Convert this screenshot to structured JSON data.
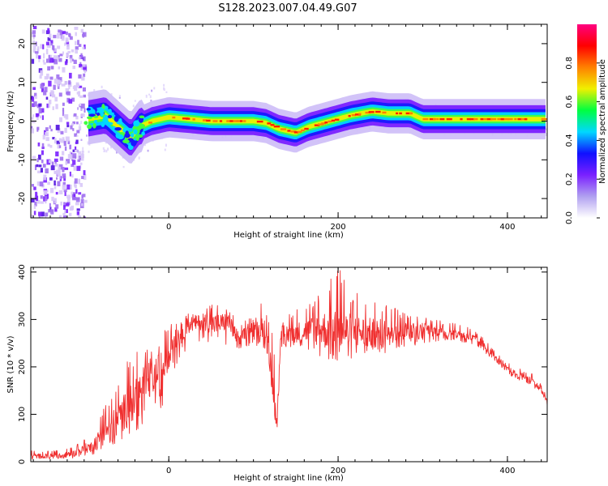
{
  "title": "S128.2023.007.04.49.G07",
  "chart_data": [
    {
      "type": "heatmap",
      "xlabel": "Height of straight line (km)",
      "ylabel": "Frequency (Hz)",
      "xlim": [
        -163,
        447
      ],
      "ylim": [
        -25,
        25
      ],
      "xticks": [
        0,
        200,
        400
      ],
      "yticks": [
        -20,
        -10,
        0,
        10,
        20
      ],
      "colorbar": {
        "label": "Normalized spectral amplitude",
        "range": [
          0,
          1
        ],
        "ticks": [
          "0.0",
          "0.2",
          "0.4",
          "0.6",
          "0.8"
        ],
        "colors": [
          "#ffffff",
          "#b0a0f0",
          "#7a20ff",
          "#1010ff",
          "#00d8ff",
          "#00ff40",
          "#f0f000",
          "#ff8000",
          "#ff0000",
          "#ff0080"
        ]
      },
      "ridge": {
        "x": [
          -100,
          -75,
          -55,
          -45,
          -35,
          -20,
          0,
          50,
          100,
          115,
          130,
          150,
          165,
          190,
          215,
          240,
          260,
          285,
          300,
          350,
          400,
          447
        ],
        "y": [
          0.5,
          1.5,
          -2.5,
          -4.5,
          -1.5,
          0,
          1,
          0,
          0,
          -0.5,
          -2,
          -3,
          -1.5,
          0,
          1.5,
          2.5,
          2,
          2,
          0.5,
          0.5,
          0.5,
          0.5
        ]
      },
      "noise_region_x": [
        -163,
        -100
      ]
    },
    {
      "type": "line",
      "xlabel": "Height of straight line (km)",
      "ylabel": "SNR (10 * v/v)",
      "xlim": [
        -163,
        447
      ],
      "ylim": [
        0,
        410
      ],
      "xticks": [
        0,
        200,
        400
      ],
      "yticks": [
        0,
        100,
        200,
        300,
        400
      ],
      "color": "#f03030",
      "series": [
        {
          "x": [
            -163,
            -130,
            -110,
            -90,
            -70,
            -50,
            -35,
            -20,
            -5,
            5,
            15,
            25,
            40,
            55,
            70,
            85,
            95,
            105,
            112,
            118,
            122,
            125,
            128,
            132,
            140,
            160,
            180,
            200,
            220,
            240,
            260,
            280,
            300,
            320,
            340,
            360,
            370,
            380,
            390,
            400,
            410,
            420,
            430,
            440,
            447
          ],
          "y": [
            12,
            12,
            18,
            35,
            70,
            110,
            150,
            175,
            200,
            260,
            270,
            290,
            295,
            290,
            295,
            250,
            290,
            265,
            290,
            240,
            185,
            120,
            80,
            270,
            270,
            275,
            280,
            270,
            275,
            270,
            275,
            275,
            280,
            275,
            270,
            260,
            250,
            230,
            210,
            195,
            185,
            180,
            170,
            150,
            125
          ],
          "envelope_lo": [
            5,
            5,
            8,
            15,
            30,
            50,
            70,
            90,
            120,
            190,
            220,
            250,
            255,
            250,
            245,
            235,
            240,
            230,
            240,
            200,
            150,
            90,
            65,
            230,
            240,
            240,
            220,
            210,
            220,
            215,
            230,
            240,
            250,
            255,
            255,
            245,
            235,
            215,
            200,
            185,
            175,
            168,
            160,
            140,
            118
          ],
          "envelope_hi": [
            25,
            25,
            35,
            65,
            140,
            210,
            270,
            240,
            280,
            300,
            300,
            320,
            320,
            340,
            320,
            300,
            320,
            300,
            360,
            320,
            280,
            220,
            100,
            300,
            320,
            330,
            370,
            410,
            360,
            345,
            330,
            315,
            305,
            300,
            290,
            280,
            270,
            245,
            225,
            210,
            200,
            192,
            185,
            165,
            135
          ]
        }
      ]
    }
  ]
}
